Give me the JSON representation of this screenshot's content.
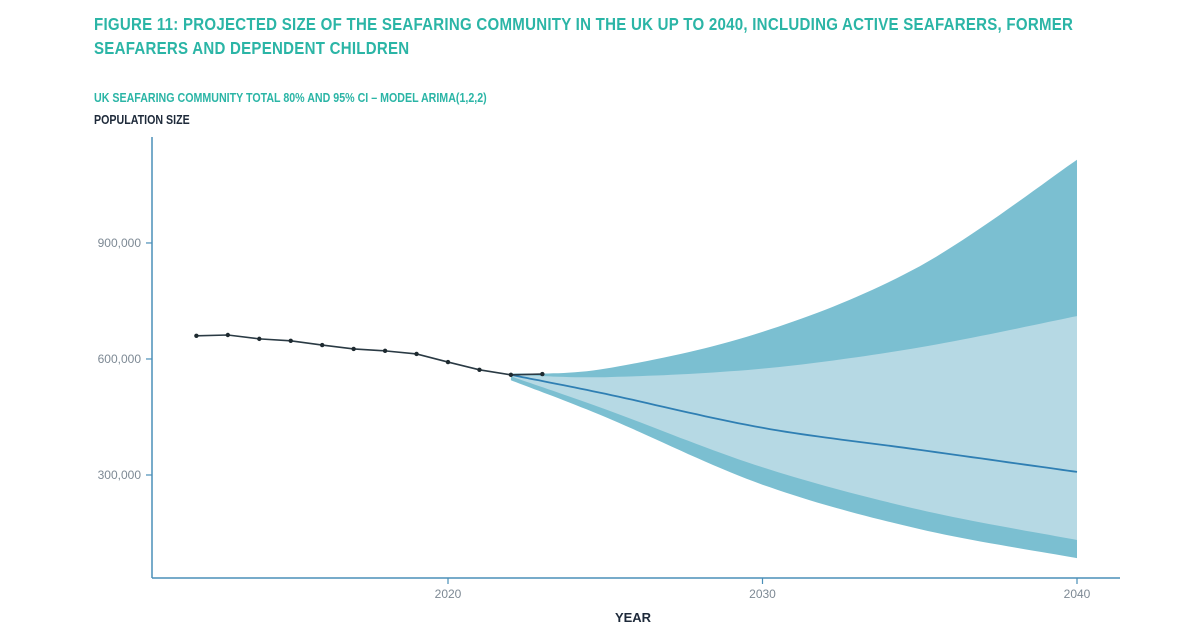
{
  "chart_data": {
    "type": "area",
    "title": "FIGURE 11: PROJECTED SIZE OF THE SEAFARING COMMUNITY IN THE UK UP TO 2040, INCLUDING ACTIVE SEAFARERS, FORMER SEAFARERS AND DEPENDENT CHILDREN",
    "subtitle": "UK SEAFARING COMMUNITY TOTAL 80% AND 95% CI – MODEL ARIMA(1,2,2)",
    "ylabel": "POPULATION SIZE",
    "xlabel": "YEAR",
    "xlim": [
      2010.5,
      2041.4
    ],
    "ylim": [
      0,
      1140000
    ],
    "x_ticks": [
      2020,
      2030,
      2040
    ],
    "x_tick_labels": [
      "2020",
      "2030",
      "2040"
    ],
    "y_ticks": [
      300000,
      600000,
      900000
    ],
    "y_tick_labels": [
      "300,000",
      "600,000",
      "900,000"
    ],
    "grid": false,
    "historical": {
      "x": [
        2012,
        2013,
        2014,
        2015,
        2016,
        2017,
        2018,
        2019,
        2020,
        2021,
        2022,
        2023
      ],
      "y": [
        660000,
        662000,
        652000,
        647000,
        636000,
        626000,
        621000,
        613000,
        592000,
        572000,
        559000,
        561000
      ]
    },
    "forecast": {
      "x": [
        2022,
        2025,
        2030,
        2035,
        2040
      ],
      "mean": [
        559000,
        510000,
        422000,
        365000,
        308000
      ],
      "upper_80": [
        560000,
        553000,
        575000,
        630000,
        711000
      ],
      "lower_80": [
        555000,
        470000,
        320000,
        210000,
        132000
      ],
      "upper_95": [
        562000,
        575000,
        670000,
        840000,
        1115000
      ],
      "lower_95": [
        545000,
        450000,
        275000,
        160000,
        85000
      ]
    },
    "colors": {
      "title": "#2bb5a6",
      "axis": "#4a8fb8",
      "historical_line": "#2a3a44",
      "forecast_line": "#2f7fb3",
      "ci_95": "#7bbfd1",
      "ci_80": "#b6d9e4"
    }
  }
}
